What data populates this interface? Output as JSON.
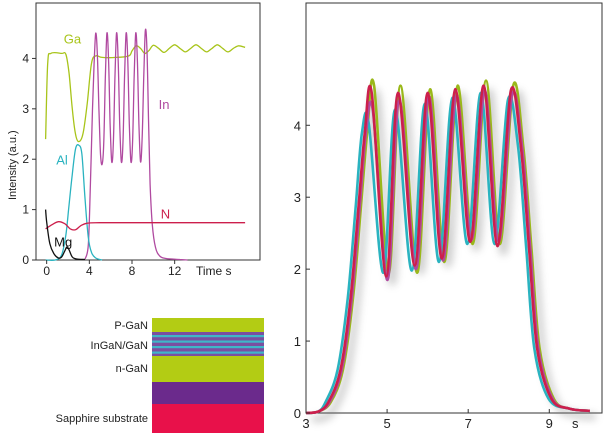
{
  "chart_data": [
    {
      "type": "line",
      "xlabel": "Time s",
      "ylabel": "Intensity (a.u.)",
      "xlim": [
        -1,
        20
      ],
      "ylim": [
        0,
        5.1
      ],
      "x_ticks": [
        "0",
        "4",
        "8",
        "12"
      ],
      "x_tick_values": [
        0,
        4,
        8,
        12
      ],
      "y_ticks": [
        "0",
        "1",
        "2",
        "3",
        "4"
      ],
      "y_tick_values": [
        0,
        1,
        2,
        3,
        4
      ],
      "grid": false,
      "series": [
        {
          "name": "Ga",
          "color": "#a8c41a",
          "label_point": [
            1.6,
            4.3
          ],
          "points": [
            [
              -0.1,
              2.4
            ],
            [
              0.1,
              3.9
            ],
            [
              0.4,
              4.1
            ],
            [
              1.4,
              4.1
            ],
            [
              1.8,
              4.08
            ],
            [
              2.1,
              3.7
            ],
            [
              2.4,
              3.0
            ],
            [
              2.7,
              2.5
            ],
            [
              3.0,
              2.35
            ],
            [
              3.4,
              2.5
            ],
            [
              3.8,
              3.1
            ],
            [
              4.2,
              3.9
            ],
            [
              4.6,
              4.05
            ],
            [
              5.2,
              4.02
            ],
            [
              6.5,
              4.02
            ],
            [
              7.7,
              4.05
            ],
            [
              8.0,
              4.15
            ],
            [
              8.4,
              4.25
            ],
            [
              8.8,
              4.2
            ],
            [
              9.2,
              4.1
            ],
            [
              9.6,
              4.16
            ],
            [
              10.0,
              4.26
            ],
            [
              10.5,
              4.2
            ],
            [
              11,
              4.12
            ],
            [
              11.5,
              4.2
            ],
            [
              12,
              4.27
            ],
            [
              12.5,
              4.2
            ],
            [
              13,
              4.13
            ],
            [
              13.5,
              4.2
            ],
            [
              14,
              4.27
            ],
            [
              14.5,
              4.2
            ],
            [
              15,
              4.13
            ],
            [
              15.5,
              4.2
            ],
            [
              16,
              4.27
            ],
            [
              16.5,
              4.2
            ],
            [
              17,
              4.13
            ],
            [
              17.5,
              4.2
            ],
            [
              18,
              4.25
            ],
            [
              18.6,
              4.22
            ]
          ]
        },
        {
          "name": "In",
          "color": "#b04aa0",
          "label_point": [
            10.5,
            3.0
          ],
          "points": [
            [
              3.6,
              0.02
            ],
            [
              3.9,
              0.3
            ],
            [
              4.1,
              1.5
            ],
            [
              4.3,
              3.0
            ],
            [
              4.45,
              3.9
            ],
            [
              4.6,
              4.5
            ],
            [
              4.75,
              4.1
            ],
            [
              4.9,
              3.0
            ],
            [
              5.05,
              2.1
            ],
            [
              5.2,
              1.9
            ],
            [
              5.35,
              2.3
            ],
            [
              5.5,
              3.6
            ],
            [
              5.65,
              4.5
            ],
            [
              5.8,
              4.0
            ],
            [
              5.95,
              2.7
            ],
            [
              6.1,
              1.95
            ],
            [
              6.25,
              2.3
            ],
            [
              6.4,
              3.6
            ],
            [
              6.55,
              4.5
            ],
            [
              6.7,
              4.0
            ],
            [
              6.85,
              2.7
            ],
            [
              7.0,
              1.95
            ],
            [
              7.15,
              2.3
            ],
            [
              7.3,
              3.6
            ],
            [
              7.45,
              4.5
            ],
            [
              7.6,
              4.0
            ],
            [
              7.75,
              2.7
            ],
            [
              7.9,
              1.95
            ],
            [
              8.05,
              2.3
            ],
            [
              8.2,
              3.6
            ],
            [
              8.35,
              4.5
            ],
            [
              8.5,
              4.0
            ],
            [
              8.65,
              2.7
            ],
            [
              8.8,
              1.95
            ],
            [
              8.95,
              2.4
            ],
            [
              9.1,
              3.6
            ],
            [
              9.25,
              4.55
            ],
            [
              9.4,
              4.2
            ],
            [
              9.55,
              2.8
            ],
            [
              9.7,
              1.5
            ],
            [
              9.9,
              0.7
            ],
            [
              10.2,
              0.25
            ],
            [
              10.6,
              0.08
            ],
            [
              11.2,
              0.03
            ],
            [
              12.5,
              0.01
            ],
            [
              13.2,
              0.0
            ]
          ]
        },
        {
          "name": "Al",
          "color": "#2ab3c0",
          "label_point": [
            0.9,
            1.9
          ],
          "points": [
            [
              -0.1,
              0.0
            ],
            [
              0.8,
              0.0
            ],
            [
              1.4,
              0.1
            ],
            [
              1.8,
              0.5
            ],
            [
              2.1,
              1.1
            ],
            [
              2.4,
              1.7
            ],
            [
              2.7,
              2.2
            ],
            [
              3.0,
              2.28
            ],
            [
              3.3,
              2.1
            ],
            [
              3.6,
              1.2
            ],
            [
              3.9,
              0.45
            ],
            [
              4.2,
              0.15
            ],
            [
              4.6,
              0.04
            ],
            [
              5.2,
              0.0
            ]
          ]
        },
        {
          "name": "N",
          "color": "#cc1f4c",
          "label_point": [
            10.7,
            0.82
          ],
          "points": [
            [
              -0.1,
              0.62
            ],
            [
              0.5,
              0.7
            ],
            [
              1.1,
              0.76
            ],
            [
              1.7,
              0.72
            ],
            [
              2.2,
              0.62
            ],
            [
              2.7,
              0.6
            ],
            [
              3.2,
              0.68
            ],
            [
              3.8,
              0.73
            ],
            [
              5,
              0.74
            ],
            [
              10,
              0.74
            ],
            [
              18.6,
              0.74
            ]
          ]
        },
        {
          "name": "Mg",
          "color": "#111111",
          "label_point": [
            0.7,
            0.27
          ],
          "points": [
            [
              -0.1,
              1.0
            ],
            [
              0.0,
              0.75
            ],
            [
              0.3,
              0.32
            ],
            [
              0.7,
              0.12
            ],
            [
              1.1,
              0.04
            ],
            [
              1.4,
              0.06
            ],
            [
              1.7,
              0.18
            ],
            [
              1.9,
              0.26
            ],
            [
              2.1,
              0.2
            ],
            [
              2.4,
              0.06
            ],
            [
              2.8,
              0.02
            ],
            [
              3.6,
              0.01
            ]
          ]
        }
      ]
    },
    {
      "type": "line",
      "xlabel": "s",
      "x_ticks": [
        "3",
        "5",
        "7",
        "9"
      ],
      "x_tick_values": [
        3,
        5,
        7,
        9
      ],
      "y_ticks": [
        "0",
        "1",
        "2",
        "3",
        "4"
      ],
      "y_tick_values": [
        0,
        1,
        2,
        3,
        4
      ],
      "xlim": [
        3,
        10.3
      ],
      "ylim": [
        0,
        5.7
      ],
      "grid": false,
      "series": [
        {
          "color": "#9ab81a",
          "shift": 0.06,
          "peaks": [
            4.55,
            4.55,
            4.5,
            4.55,
            4.62,
            4.55
          ],
          "troughs": [
            1.95,
            1.95,
            2.1,
            2.35,
            2.35
          ]
        },
        {
          "color": "#2ab3c0",
          "shift": -0.07,
          "peaks": [
            4.02,
            4.22,
            4.3,
            4.38,
            4.45,
            4.35
          ],
          "troughs": [
            1.95,
            1.98,
            2.1,
            2.35,
            2.35
          ]
        },
        {
          "color": "#b04aa0",
          "shift": 0.03,
          "peaks": [
            4.2,
            4.35,
            4.4,
            4.42,
            4.48,
            4.42
          ],
          "troughs": [
            1.85,
            2.0,
            2.12,
            2.4,
            2.38
          ]
        },
        {
          "color": "#cc1f4c",
          "shift": 0.0,
          "peaks": [
            4.45,
            4.45,
            4.45,
            4.5,
            4.55,
            4.48
          ],
          "troughs": [
            1.9,
            2.05,
            2.15,
            2.38,
            2.32
          ]
        }
      ],
      "peak_times": [
        4.62,
        5.27,
        6.0,
        6.68,
        7.38,
        8.05
      ],
      "trough_times": [
        4.98,
        5.68,
        6.35,
        7.05,
        7.72
      ],
      "rise_start": 3.55,
      "fall_end": 9.05
    }
  ],
  "layer_stack": {
    "layers": [
      {
        "label": "P-GaN",
        "color": "#b3cc14"
      },
      {
        "label": "InGaN/GaN",
        "color": "#7a4fa0"
      },
      {
        "label": "n-GaN",
        "color": "#b3cc14"
      },
      {
        "label": "",
        "color": "#6b2a8c"
      },
      {
        "label": "Sapphire substrate",
        "color": "#e8114a"
      }
    ],
    "stripe_color": "#3fb6c8"
  }
}
